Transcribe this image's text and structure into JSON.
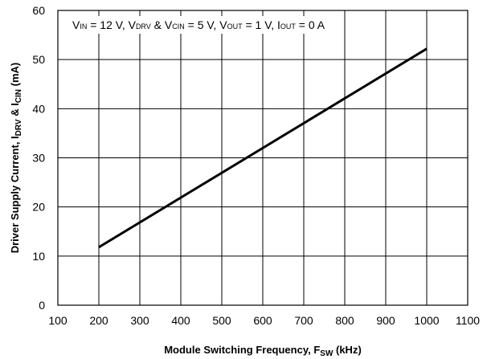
{
  "chart_data": {
    "type": "line",
    "title": "",
    "annotation": {
      "parts": [
        {
          "text": "V",
          "sub": "IN",
          "after": " = 12 V, "
        },
        {
          "text": "V",
          "sub": "DRV",
          "after": " & "
        },
        {
          "text": "V",
          "sub": "CIN",
          "after": " = 5 V, "
        },
        {
          "text": "V",
          "sub": "OUT",
          "after": " = 1 V, "
        },
        {
          "text": "I",
          "sub": "OUT",
          "after": " = 0 A"
        }
      ]
    },
    "xlabel": {
      "main": "Module Switching Frequency, F",
      "sub": "SW",
      "suffix": " (kHz)"
    },
    "ylabel": {
      "p1": "Driver Supply Current, I",
      "s1": "DRV",
      "p2": " & I",
      "s2": "CIN",
      "p3": " (mA)"
    },
    "xlim": [
      100,
      1100
    ],
    "ylim": [
      0,
      60
    ],
    "x_ticks": [
      100,
      200,
      300,
      400,
      500,
      600,
      700,
      800,
      900,
      1000,
      1100
    ],
    "y_ticks": [
      0,
      10,
      20,
      30,
      40,
      50,
      60
    ],
    "grid": true,
    "series": [
      {
        "x": [
          200,
          1000
        ],
        "y": [
          11.8,
          52.2
        ],
        "color": "#000000"
      }
    ]
  }
}
